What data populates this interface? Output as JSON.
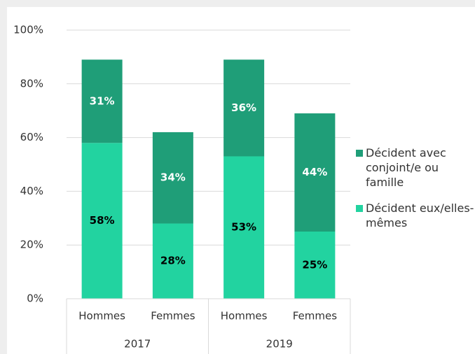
{
  "chart_data": {
    "type": "stacked_bar",
    "categories": [
      "Hommes",
      "Femmes",
      "Hommes",
      "Femmes"
    ],
    "groups": [
      "2017",
      "2019"
    ],
    "series": [
      {
        "name": "Décident eux/elles-mêmes",
        "color": "#22d3a0",
        "values": [
          58,
          28,
          53,
          25
        ],
        "value_labels": [
          "58%",
          "28%",
          "53%",
          "25%"
        ]
      },
      {
        "name": "Décident avec conjoint/e ou famille",
        "color": "#1f9e78",
        "values": [
          31,
          34,
          36,
          44
        ],
        "value_labels": [
          "31%",
          "34%",
          "36%",
          "44%"
        ]
      }
    ],
    "ylim": [
      0,
      100
    ],
    "yticks": [
      {
        "value": 0,
        "label": "0%"
      },
      {
        "value": 20,
        "label": "20%"
      },
      {
        "value": 40,
        "label": "40%"
      },
      {
        "value": 60,
        "label": "60%"
      },
      {
        "value": 80,
        "label": "80%"
      },
      {
        "value": 100,
        "label": "100%"
      }
    ],
    "grid": true,
    "legend": "right"
  }
}
